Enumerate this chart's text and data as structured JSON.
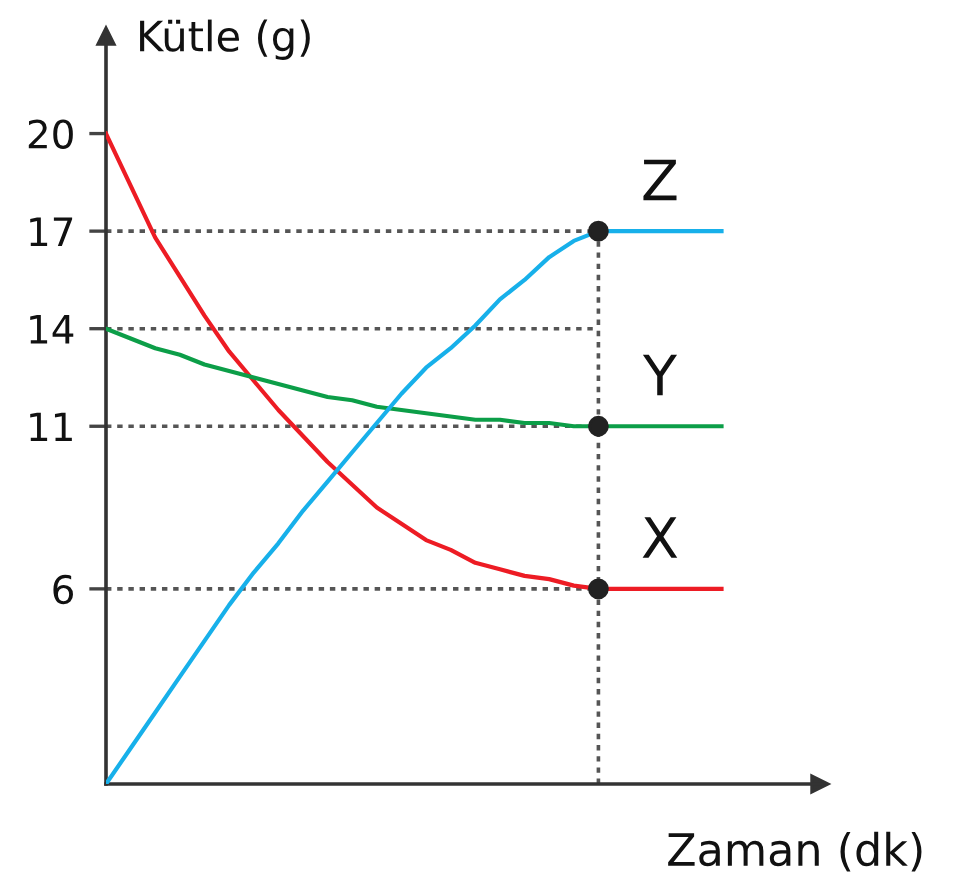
{
  "chart_data": {
    "type": "line",
    "xlabel": "Zaman (dk)",
    "ylabel": "Kütle (g)",
    "categories": [
      null,
      null,
      null,
      null,
      null,
      null,
      null,
      null,
      null,
      null,
      null,
      null,
      null,
      null,
      null,
      null,
      null,
      null,
      null,
      null,
      null,
      null,
      null,
      null,
      null,
      null
    ],
    "ylim": [
      0,
      23
    ],
    "yticks": [
      6,
      11,
      14,
      17,
      20
    ],
    "series": [
      {
        "line_style": "dotted",
        "color": "#555555",
        "values": [
          17,
          17,
          17,
          17,
          17,
          17,
          17,
          17,
          17,
          17,
          17,
          17,
          17,
          17,
          17,
          17,
          17,
          17,
          17,
          17,
          17,
          null,
          null,
          null,
          null,
          null
        ]
      },
      {
        "line_style": "dotted",
        "color": "#555555",
        "values": [
          14,
          14,
          14,
          14,
          14,
          14,
          14,
          14,
          14,
          14,
          14,
          14,
          14,
          14,
          14,
          14,
          14,
          14,
          14,
          14,
          14,
          null,
          null,
          null,
          null,
          null
        ]
      },
      {
        "line_style": "dotted",
        "color": "#555555",
        "values": [
          11,
          11,
          11,
          11,
          11,
          11,
          11,
          11,
          11,
          11,
          11,
          11,
          11,
          11,
          11,
          11,
          11,
          11,
          11,
          11,
          11,
          null,
          null,
          null,
          null,
          null
        ]
      },
      {
        "line_style": "dotted",
        "color": "#555555",
        "values": [
          6,
          6,
          6,
          6,
          6,
          6,
          6,
          6,
          6,
          6,
          6,
          6,
          6,
          6,
          6,
          6,
          6,
          6,
          6,
          6,
          6,
          null,
          null,
          null,
          null,
          null
        ]
      },
      {
        "name": "X",
        "color": "#ed1c24",
        "values": [
          20,
          18.4,
          16.8,
          15.6,
          14.4,
          13.3,
          12.4,
          11.5,
          10.7,
          9.9,
          9.2,
          8.5,
          8.0,
          7.5,
          7.2,
          6.8,
          6.6,
          6.4,
          6.3,
          6.1,
          6,
          6,
          6,
          6,
          6,
          6
        ]
      },
      {
        "name": "Y",
        "color": "#0c9e48",
        "values": [
          14,
          13.7,
          13.4,
          13.2,
          12.9,
          12.7,
          12.5,
          12.3,
          12.1,
          11.9,
          11.8,
          11.6,
          11.5,
          11.4,
          11.3,
          11.2,
          11.2,
          11.1,
          11.1,
          11.0,
          11,
          11,
          11,
          11,
          11,
          11
        ]
      },
      {
        "name": "Z",
        "color": "#17b0ea",
        "values": [
          0,
          1.1,
          2.2,
          3.3,
          4.4,
          5.5,
          6.5,
          7.4,
          8.4,
          9.3,
          10.2,
          11.1,
          12.0,
          12.8,
          13.4,
          14.1,
          14.9,
          15.5,
          16.2,
          16.7,
          17,
          17,
          17,
          17,
          17,
          17
        ]
      },
      {
        "type": "scatter",
        "marker": "circle",
        "color": "#222222",
        "values": [
          null,
          null,
          null,
          null,
          null,
          null,
          null,
          null,
          null,
          null,
          null,
          null,
          null,
          null,
          null,
          null,
          null,
          null,
          null,
          null,
          17,
          null,
          null,
          null,
          null,
          null
        ]
      },
      {
        "type": "scatter",
        "marker": "circle",
        "color": "#222222",
        "values": [
          null,
          null,
          null,
          null,
          null,
          null,
          null,
          null,
          null,
          null,
          null,
          null,
          null,
          null,
          null,
          null,
          null,
          null,
          null,
          null,
          11,
          null,
          null,
          null,
          null,
          null
        ]
      },
      {
        "type": "scatter",
        "marker": "circle",
        "color": "#222222",
        "values": [
          null,
          null,
          null,
          null,
          null,
          null,
          null,
          null,
          null,
          null,
          null,
          null,
          null,
          null,
          null,
          null,
          null,
          null,
          null,
          null,
          6,
          null,
          null,
          null,
          null,
          null
        ]
      }
    ]
  }
}
